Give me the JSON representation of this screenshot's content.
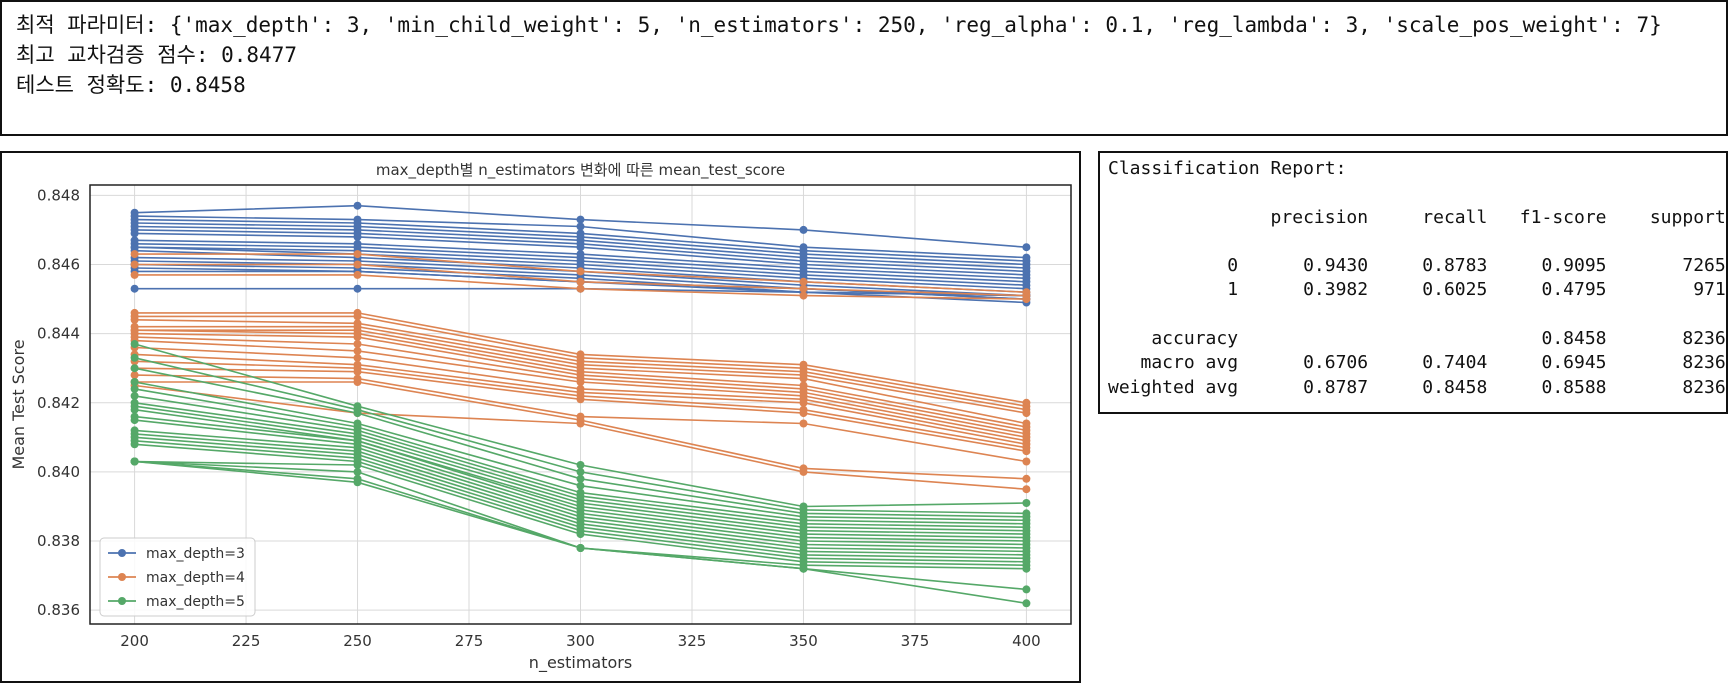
{
  "output": {
    "best_params_line": "최적 파라미터: {'max_depth': 3, 'min_child_weight': 5, 'n_estimators': 250, 'reg_alpha': 0.1, 'reg_lambda': 3, 'scale_pos_weight': 7}",
    "cv_score_line": "최고 교차검증 점수: 0.8477",
    "test_acc_line": "테스트 정확도: 0.8458"
  },
  "report": {
    "title": "Classification Report:",
    "header": [
      "precision",
      "recall",
      "f1-score",
      "support"
    ],
    "rows": [
      {
        "label": "0",
        "values": [
          "0.9430",
          "0.8783",
          "0.9095",
          "7265"
        ]
      },
      {
        "label": "1",
        "values": [
          "0.3982",
          "0.6025",
          "0.4795",
          "971"
        ]
      },
      {
        "label": "accuracy",
        "values": [
          "",
          "",
          "0.8458",
          "8236"
        ]
      },
      {
        "label": "macro avg",
        "values": [
          "0.6706",
          "0.7404",
          "0.6945",
          "8236"
        ]
      },
      {
        "label": "weighted avg",
        "values": [
          "0.8787",
          "0.8458",
          "0.8588",
          "8236"
        ]
      }
    ]
  },
  "chart_data": {
    "type": "line",
    "title": "max_depth별 n_estimators 변화에 따른 mean_test_score",
    "xlabel": "n_estimators",
    "ylabel": "Mean Test Score",
    "x": [
      200,
      250,
      300,
      350,
      400
    ],
    "xticks": [
      "200",
      "225",
      "250",
      "275",
      "300",
      "325",
      "350",
      "375",
      "400"
    ],
    "yticks": [
      "0.836",
      "0.838",
      "0.840",
      "0.842",
      "0.844",
      "0.846",
      "0.848"
    ],
    "xlim": [
      190,
      410
    ],
    "ylim": [
      0.8356,
      0.8483
    ],
    "grid": true,
    "legend_position": "lower-left",
    "series": [
      {
        "name": "max_depth=3",
        "color": "#4c72b0",
        "lines": [
          [
            0.8475,
            0.8477,
            0.8473,
            0.847,
            0.8465
          ],
          [
            0.8474,
            0.8473,
            0.8471,
            0.8465,
            0.8462
          ],
          [
            0.8473,
            0.8472,
            0.8469,
            0.8464,
            0.8461
          ],
          [
            0.8472,
            0.8471,
            0.8468,
            0.8463,
            0.846
          ],
          [
            0.8471,
            0.847,
            0.8467,
            0.8462,
            0.8459
          ],
          [
            0.847,
            0.8469,
            0.8466,
            0.8461,
            0.8458
          ],
          [
            0.8469,
            0.8468,
            0.8465,
            0.846,
            0.8457
          ],
          [
            0.8467,
            0.8466,
            0.8463,
            0.8459,
            0.8456
          ],
          [
            0.8466,
            0.8465,
            0.8462,
            0.8458,
            0.8455
          ],
          [
            0.8465,
            0.8464,
            0.8461,
            0.8457,
            0.8454
          ],
          [
            0.8465,
            0.8463,
            0.846,
            0.8456,
            0.8453
          ],
          [
            0.8464,
            0.8462,
            0.8459,
            0.8455,
            0.8452
          ],
          [
            0.8462,
            0.8461,
            0.8458,
            0.8454,
            0.8451
          ],
          [
            0.8461,
            0.846,
            0.8457,
            0.8453,
            0.845
          ],
          [
            0.846,
            0.8459,
            0.8456,
            0.8452,
            0.8449
          ],
          [
            0.8459,
            0.8458,
            0.8455,
            0.8453,
            0.845
          ],
          [
            0.8458,
            0.8458,
            0.8455,
            0.8452,
            0.8451
          ],
          [
            0.8453,
            0.8453,
            0.8453,
            0.8452,
            0.8451
          ]
        ]
      },
      {
        "name": "max_depth=4",
        "color": "#dd8452",
        "lines": [
          [
            0.8463,
            0.8463,
            0.8458,
            0.8455,
            0.8452
          ],
          [
            0.846,
            0.846,
            0.8455,
            0.8453,
            0.8451
          ],
          [
            0.8457,
            0.8457,
            0.8453,
            0.8451,
            0.845
          ],
          [
            0.8446,
            0.8446,
            0.8434,
            0.8431,
            0.842
          ],
          [
            0.8445,
            0.8445,
            0.8433,
            0.843,
            0.8419
          ],
          [
            0.8444,
            0.8443,
            0.8432,
            0.8429,
            0.8418
          ],
          [
            0.8442,
            0.8442,
            0.8431,
            0.8428,
            0.8417
          ],
          [
            0.8441,
            0.8441,
            0.843,
            0.8427,
            0.8414
          ],
          [
            0.8441,
            0.844,
            0.8429,
            0.8425,
            0.8413
          ],
          [
            0.844,
            0.8439,
            0.8428,
            0.8424,
            0.8412
          ],
          [
            0.8439,
            0.8437,
            0.8427,
            0.8423,
            0.8411
          ],
          [
            0.8438,
            0.8435,
            0.8426,
            0.8422,
            0.841
          ],
          [
            0.8436,
            0.8433,
            0.8424,
            0.8421,
            0.8409
          ],
          [
            0.8434,
            0.8431,
            0.8423,
            0.842,
            0.8408
          ],
          [
            0.8432,
            0.843,
            0.8422,
            0.8418,
            0.8407
          ],
          [
            0.843,
            0.8429,
            0.8421,
            0.8417,
            0.8406
          ],
          [
            0.8428,
            0.8427,
            0.8416,
            0.8414,
            0.8403
          ],
          [
            0.8426,
            0.8426,
            0.8415,
            0.8401,
            0.8398
          ],
          [
            0.8425,
            0.8417,
            0.8414,
            0.84,
            0.8395
          ]
        ]
      },
      {
        "name": "max_depth=5",
        "color": "#55a868",
        "lines": [
          [
            0.8437,
            0.8419,
            0.8402,
            0.839,
            0.8391
          ],
          [
            0.8433,
            0.8418,
            0.84,
            0.8389,
            0.8388
          ],
          [
            0.843,
            0.8417,
            0.8398,
            0.8388,
            0.8387
          ],
          [
            0.8426,
            0.8414,
            0.8396,
            0.8387,
            0.8386
          ],
          [
            0.8424,
            0.8413,
            0.8394,
            0.8386,
            0.8385
          ],
          [
            0.8422,
            0.8412,
            0.8393,
            0.8385,
            0.8384
          ],
          [
            0.842,
            0.8411,
            0.8392,
            0.8384,
            0.8383
          ],
          [
            0.8419,
            0.841,
            0.8391,
            0.8383,
            0.8382
          ],
          [
            0.8418,
            0.8409,
            0.839,
            0.8382,
            0.8381
          ],
          [
            0.8416,
            0.8409,
            0.8389,
            0.8381,
            0.838
          ],
          [
            0.8415,
            0.8408,
            0.8388,
            0.838,
            0.8379
          ],
          [
            0.8412,
            0.8407,
            0.8387,
            0.8379,
            0.8378
          ],
          [
            0.8411,
            0.8406,
            0.8386,
            0.8378,
            0.8377
          ],
          [
            0.841,
            0.8405,
            0.8385,
            0.8377,
            0.8376
          ],
          [
            0.8409,
            0.8404,
            0.8384,
            0.8376,
            0.8375
          ],
          [
            0.8408,
            0.8403,
            0.8383,
            0.8375,
            0.8374
          ],
          [
            0.8403,
            0.8402,
            0.8382,
            0.8374,
            0.8373
          ],
          [
            0.8403,
            0.84,
            0.8378,
            0.8373,
            0.8372
          ],
          [
            0.8403,
            0.8398,
            0.8378,
            0.8372,
            0.8366
          ],
          [
            0.8403,
            0.8397,
            0.8378,
            0.8372,
            0.8362
          ]
        ]
      }
    ]
  }
}
